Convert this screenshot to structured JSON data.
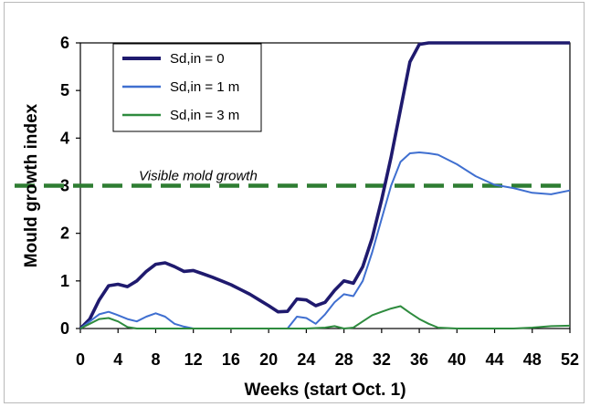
{
  "chart_data": {
    "type": "line",
    "title": "",
    "xlabel": "Weeks (start Oct. 1)",
    "ylabel": "Mould growth index",
    "xlim": [
      0,
      52
    ],
    "ylim": [
      0,
      6
    ],
    "x_ticks": [
      "0",
      "4",
      "8",
      "12",
      "16",
      "20",
      "24",
      "28",
      "32",
      "36",
      "40",
      "44",
      "48",
      "52"
    ],
    "y_ticks": [
      "0",
      "1",
      "2",
      "3",
      "4",
      "5",
      "6"
    ],
    "grid": false,
    "legend_position": "top-left",
    "colors": {
      "sd0": "#1f1a6e",
      "sd1": "#3f6fd0",
      "sd3": "#2e8b3e",
      "threshold": "#2e7d32"
    },
    "series": [
      {
        "name": "Sd,in = 0",
        "x": [
          0,
          1,
          2,
          3,
          4,
          5,
          6,
          7,
          8,
          9,
          10,
          11,
          12,
          13,
          14,
          15,
          16,
          17,
          18,
          19,
          20,
          21,
          22,
          23,
          24,
          25,
          26,
          27,
          28,
          29,
          30,
          31,
          32,
          33,
          34,
          35,
          36,
          37,
          38,
          40,
          44,
          48,
          52
        ],
        "y": [
          0,
          0.2,
          0.6,
          0.9,
          0.93,
          0.88,
          1.0,
          1.2,
          1.35,
          1.38,
          1.3,
          1.2,
          1.22,
          1.15,
          1.08,
          1.0,
          0.92,
          0.82,
          0.72,
          0.6,
          0.48,
          0.35,
          0.36,
          0.62,
          0.6,
          0.48,
          0.55,
          0.8,
          1.0,
          0.95,
          1.3,
          1.9,
          2.7,
          3.6,
          4.6,
          5.6,
          5.97,
          6.0,
          6.0,
          6.0,
          6.0,
          6.0,
          6.0
        ]
      },
      {
        "name": "Sd,in = 1 m",
        "x": [
          0,
          1,
          2,
          3,
          4,
          5,
          6,
          7,
          8,
          9,
          10,
          11,
          12,
          14,
          16,
          18,
          20,
          21,
          22,
          23,
          24,
          25,
          26,
          27,
          28,
          29,
          30,
          31,
          32,
          33,
          34,
          35,
          36,
          37,
          38,
          40,
          42,
          44,
          46,
          48,
          50,
          52
        ],
        "y": [
          0,
          0.15,
          0.3,
          0.35,
          0.28,
          0.2,
          0.15,
          0.25,
          0.32,
          0.25,
          0.1,
          0.04,
          0.0,
          0.0,
          0.0,
          0.0,
          0.0,
          0.0,
          0.0,
          0.25,
          0.22,
          0.1,
          0.3,
          0.55,
          0.72,
          0.68,
          1.0,
          1.6,
          2.3,
          3.0,
          3.5,
          3.68,
          3.7,
          3.68,
          3.65,
          3.45,
          3.2,
          3.02,
          2.95,
          2.85,
          2.82,
          2.9
        ]
      },
      {
        "name": "Sd,in = 3 m",
        "x": [
          0,
          1,
          2,
          3,
          4,
          5,
          6,
          8,
          10,
          12,
          16,
          20,
          24,
          26,
          27,
          28,
          29,
          30,
          31,
          32,
          33,
          34,
          35,
          36,
          37,
          38,
          40,
          44,
          46,
          48,
          50,
          52
        ],
        "y": [
          0,
          0.1,
          0.2,
          0.22,
          0.15,
          0.03,
          0.0,
          0.0,
          0.0,
          0.0,
          0.0,
          0.0,
          0.0,
          0.02,
          0.05,
          0.0,
          0.02,
          0.15,
          0.28,
          0.35,
          0.42,
          0.47,
          0.33,
          0.2,
          0.1,
          0.02,
          0.0,
          0.0,
          0.0,
          0.02,
          0.05,
          0.06
        ]
      }
    ],
    "threshold": {
      "y": 3,
      "label": "Visible mold growth"
    }
  }
}
